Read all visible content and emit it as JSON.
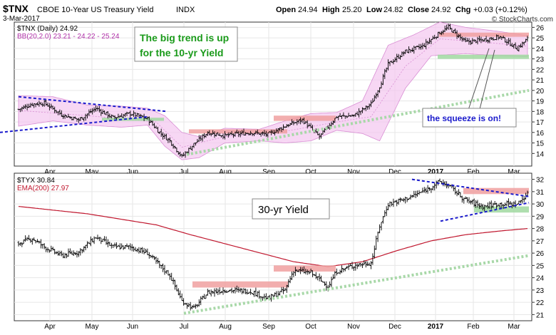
{
  "header": {
    "symbol": "$TNX",
    "name": "CBOE 10-Year US Treasury Yield",
    "exchange": "INDX",
    "date": "3-Mar-2017",
    "open_label": "Open",
    "open": "24.94",
    "high_label": "High",
    "high": "25.20",
    "low_label": "Low",
    "low": "24.82",
    "close_label": "Close",
    "close": "24.92",
    "chg_label": "Chg",
    "chg": "+0.03 (+0.12%)",
    "watermark": "© StockCharts.com"
  },
  "colors": {
    "bull": "#000000",
    "bollinger_fill": "#f4c6f0",
    "bollinger_line": "#d98ed4",
    "ema": "#c0172e",
    "resistance": "#f0a0a0",
    "support": "#a0d8a0",
    "trendline_blue": "#1a1acc",
    "trendline_green": "#a8d8a8",
    "annotation_green": "#1a9a1a",
    "annotation_blue": "#1a1acc"
  },
  "chart_data": [
    {
      "type": "ohlc",
      "legend": [
        "$TNX (Daily) 24.92",
        "BB(20,2.0) 23.21 - 24.22 - 25.24"
      ],
      "annotation_main": [
        "The big trend is up",
        "for the 10-yr Yield"
      ],
      "annotation_squeeze": "the squeeze is on!",
      "ylim": [
        12.8,
        26.5
      ],
      "yticks": [
        14,
        15,
        16,
        17,
        18,
        19,
        20,
        21,
        22,
        23,
        24,
        25,
        26
      ],
      "xticks": [
        "Apr",
        "May",
        "Jun",
        "Jul",
        "Aug",
        "Sep",
        "Oct",
        "Nov",
        "Dec",
        "2017",
        "Feb",
        "Mar"
      ],
      "close_anchors": [
        [
          0,
          18.2
        ],
        [
          8,
          18.7
        ],
        [
          15,
          18.8
        ],
        [
          25,
          17.7
        ],
        [
          35,
          17.2
        ],
        [
          45,
          18.3
        ],
        [
          55,
          17.4
        ],
        [
          65,
          17.8
        ],
        [
          75,
          17.3
        ],
        [
          82,
          16.0
        ],
        [
          88,
          15.2
        ],
        [
          95,
          13.7
        ],
        [
          102,
          14.9
        ],
        [
          110,
          16.0
        ],
        [
          120,
          15.7
        ],
        [
          135,
          16.0
        ],
        [
          145,
          15.8
        ],
        [
          155,
          16.6
        ],
        [
          165,
          17.2
        ],
        [
          175,
          15.6
        ],
        [
          185,
          17.5
        ],
        [
          195,
          17.6
        ],
        [
          205,
          18.7
        ],
        [
          210,
          20.4
        ],
        [
          215,
          22.5
        ],
        [
          225,
          23.7
        ],
        [
          235,
          24.2
        ],
        [
          245,
          25.5
        ],
        [
          250,
          26.0
        ],
        [
          260,
          24.6
        ],
        [
          270,
          24.8
        ],
        [
          280,
          25.1
        ],
        [
          290,
          24.0
        ],
        [
          296,
          24.9
        ]
      ],
      "bb_upper": [
        [
          0,
          19.5
        ],
        [
          20,
          19.4
        ],
        [
          40,
          18.6
        ],
        [
          60,
          18.5
        ],
        [
          75,
          18.3
        ],
        [
          85,
          17.6
        ],
        [
          95,
          16.0
        ],
        [
          105,
          15.6
        ],
        [
          120,
          16.4
        ],
        [
          140,
          16.3
        ],
        [
          155,
          17.1
        ],
        [
          170,
          17.8
        ],
        [
          185,
          17.9
        ],
        [
          200,
          19.0
        ],
        [
          215,
          24.3
        ],
        [
          230,
          25.3
        ],
        [
          245,
          26.5
        ],
        [
          260,
          26.0
        ],
        [
          280,
          25.6
        ],
        [
          296,
          25.2
        ]
      ],
      "bb_lower": [
        [
          0,
          16.6
        ],
        [
          20,
          17.1
        ],
        [
          40,
          16.7
        ],
        [
          60,
          16.5
        ],
        [
          75,
          16.7
        ],
        [
          85,
          14.7
        ],
        [
          95,
          13.4
        ],
        [
          105,
          13.6
        ],
        [
          120,
          15.0
        ],
        [
          140,
          15.2
        ],
        [
          155,
          15.0
        ],
        [
          170,
          15.2
        ],
        [
          185,
          16.2
        ],
        [
          200,
          15.9
        ],
        [
          210,
          15.2
        ],
        [
          225,
          20.2
        ],
        [
          240,
          23.3
        ],
        [
          260,
          23.5
        ],
        [
          280,
          23.3
        ],
        [
          296,
          23.2
        ]
      ],
      "bb_middle": [
        [
          0,
          18.1
        ],
        [
          40,
          17.6
        ],
        [
          80,
          17.0
        ],
        [
          95,
          14.6
        ],
        [
          120,
          15.6
        ],
        [
          155,
          16.1
        ],
        [
          185,
          17.0
        ],
        [
          205,
          17.5
        ],
        [
          225,
          22.3
        ],
        [
          245,
          24.9
        ],
        [
          270,
          24.6
        ],
        [
          296,
          24.2
        ]
      ]
    },
    {
      "type": "ohlc",
      "legend": [
        "$TYX 30.84",
        "EMA(200) 27.97"
      ],
      "annotation_main": "30-yr Yield",
      "ylim": [
        20.5,
        32.5
      ],
      "yticks": [
        21,
        22,
        23,
        24,
        25,
        26,
        27,
        28,
        29,
        30,
        31,
        32
      ],
      "xticks": [
        "Apr",
        "May",
        "Jun",
        "Jul",
        "Aug",
        "Sep",
        "Oct",
        "Nov",
        "Dec",
        "2017",
        "Feb",
        "Mar"
      ],
      "close_anchors": [
        [
          0,
          26.8
        ],
        [
          8,
          27.2
        ],
        [
          15,
          26.5
        ],
        [
          25,
          25.8
        ],
        [
          35,
          26.1
        ],
        [
          45,
          27.3
        ],
        [
          55,
          26.5
        ],
        [
          65,
          26.5
        ],
        [
          75,
          26.0
        ],
        [
          82,
          25.0
        ],
        [
          88,
          24.2
        ],
        [
          95,
          22.1
        ],
        [
          102,
          21.5
        ],
        [
          110,
          22.8
        ],
        [
          120,
          23.0
        ],
        [
          135,
          22.9
        ],
        [
          145,
          22.3
        ],
        [
          155,
          23.0
        ],
        [
          160,
          24.6
        ],
        [
          170,
          24.4
        ],
        [
          180,
          23.3
        ],
        [
          185,
          24.5
        ],
        [
          195,
          25.0
        ],
        [
          205,
          25.2
        ],
        [
          210,
          28.2
        ],
        [
          215,
          30.0
        ],
        [
          225,
          30.4
        ],
        [
          235,
          31.0
        ],
        [
          245,
          31.8
        ],
        [
          250,
          31.5
        ],
        [
          260,
          30.3
        ],
        [
          270,
          29.8
        ],
        [
          280,
          30.0
        ],
        [
          290,
          30.0
        ],
        [
          296,
          30.8
        ]
      ],
      "ema200": [
        [
          0,
          29.8
        ],
        [
          40,
          29.2
        ],
        [
          80,
          28.3
        ],
        [
          100,
          27.5
        ],
        [
          130,
          26.4
        ],
        [
          160,
          25.3
        ],
        [
          180,
          24.9
        ],
        [
          200,
          25.3
        ],
        [
          220,
          26.2
        ],
        [
          240,
          27.0
        ],
        [
          260,
          27.5
        ],
        [
          280,
          27.8
        ],
        [
          296,
          28.0
        ]
      ]
    }
  ]
}
